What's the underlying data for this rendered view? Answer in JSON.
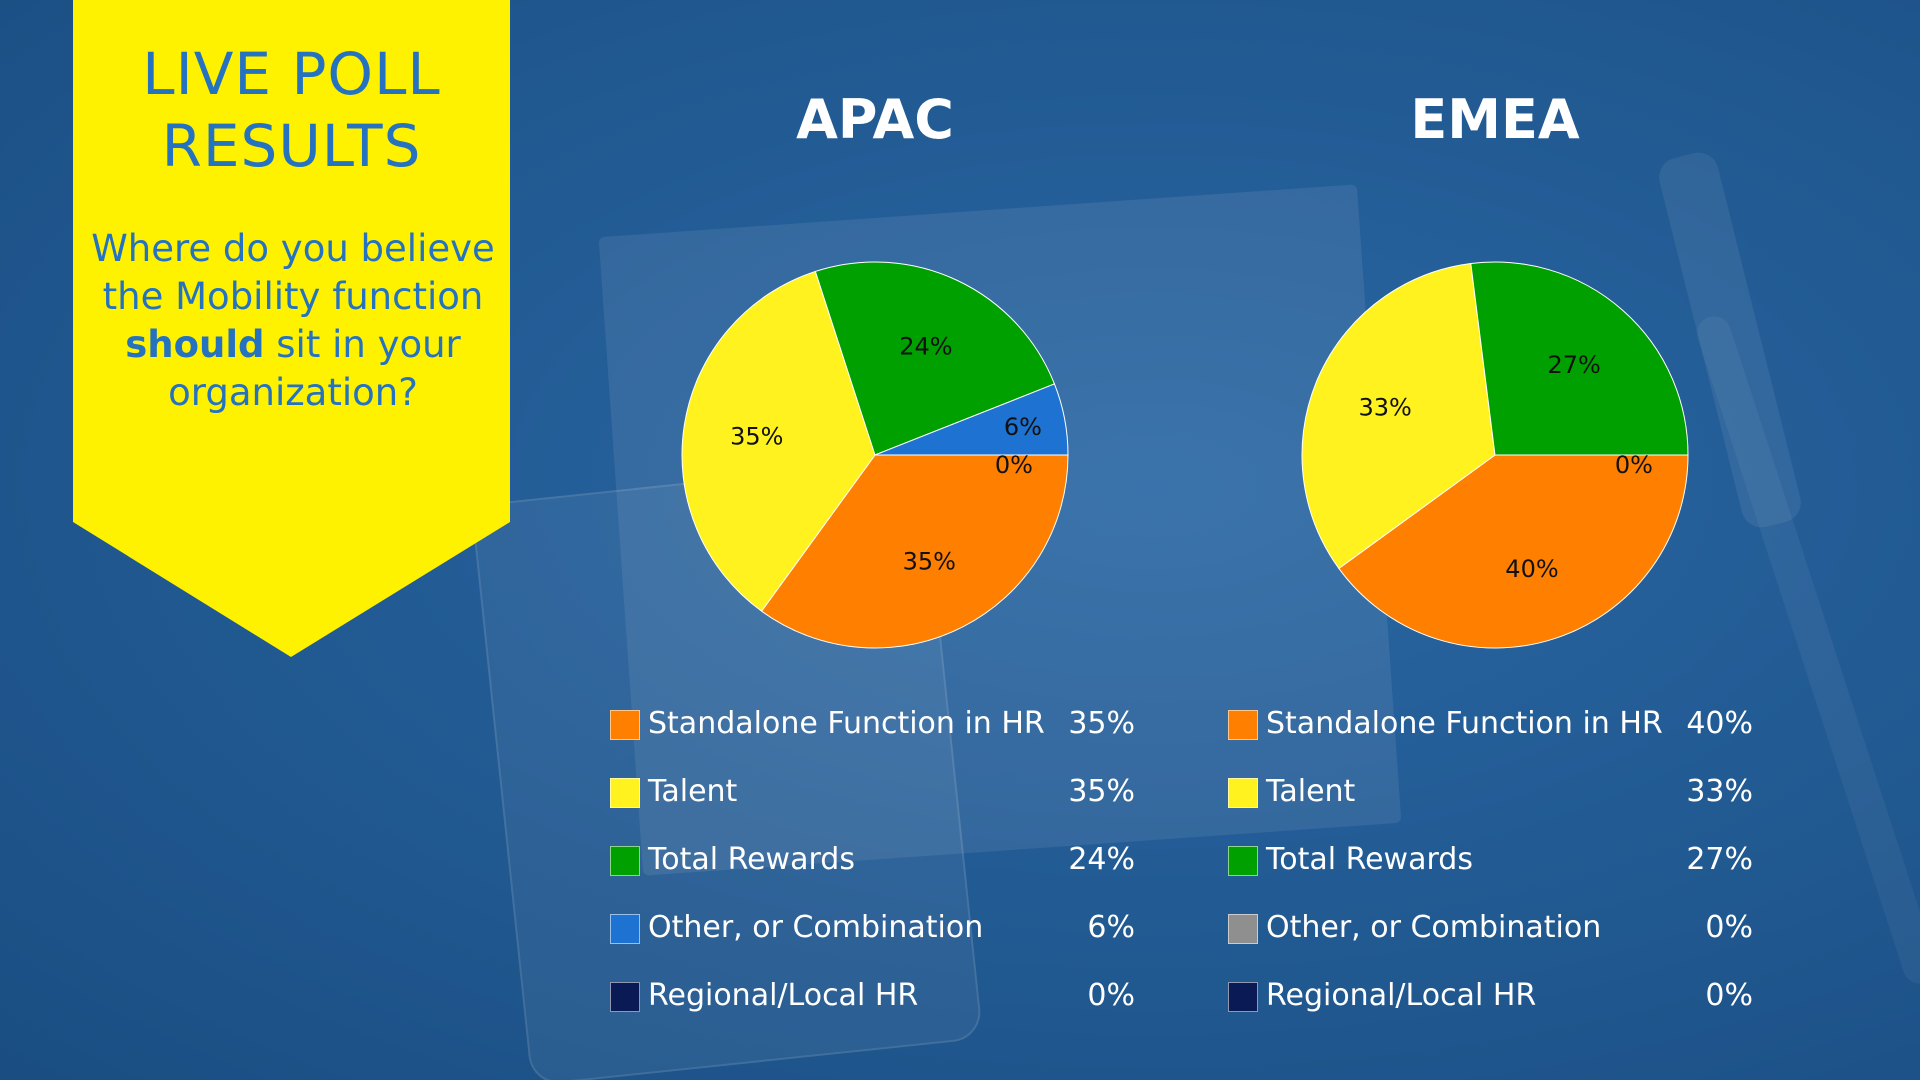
{
  "banner": {
    "title": "LIVE POLL\nRESULTS",
    "question_before": "Where do you believe the Mobility function ",
    "question_bold": "should",
    "question_after": " sit in your organization?",
    "color": "#fff200",
    "text_color": "#2572c0"
  },
  "colors": {
    "background": "#1f5f9f",
    "standalone": "#ff8000",
    "talent": "#fff21f",
    "total_rewards": "#00a000",
    "other_apac": "#1e73d2",
    "other_emea": "#8f8f8f",
    "regional": "#0a1a55"
  },
  "chart_data": [
    {
      "type": "pie",
      "title": "APAC",
      "series": [
        {
          "name": "Standalone Function in HR",
          "value": 35,
          "label": "35%",
          "legend_value": "35%",
          "color": "#ff8000"
        },
        {
          "name": "Talent",
          "value": 35,
          "label": "35%",
          "legend_value": "35%",
          "color": "#fff21f"
        },
        {
          "name": "Total Rewards",
          "value": 24,
          "label": "24%",
          "legend_value": "24%",
          "color": "#00a000"
        },
        {
          "name": "Other, or Combination",
          "value": 6,
          "label": "6%",
          "legend_value": "6%",
          "color": "#1e73d2"
        },
        {
          "name": "Regional/Local HR",
          "value": 0,
          "label": "0%",
          "legend_value": "0%",
          "color": "#0a1a55"
        }
      ],
      "legend_position": "bottom"
    },
    {
      "type": "pie",
      "title": "EMEA",
      "series": [
        {
          "name": "Standalone Function in HR",
          "value": 40,
          "label": "40%",
          "legend_value": "40%",
          "color": "#ff8000"
        },
        {
          "name": "Talent",
          "value": 33,
          "label": "33%",
          "legend_value": "33%",
          "color": "#fff21f"
        },
        {
          "name": "Total Rewards",
          "value": 27,
          "label": "27%",
          "legend_value": "27%",
          "color": "#00a000"
        },
        {
          "name": "Other, or Combination",
          "value": 0,
          "label": "",
          "legend_value": "0%",
          "color": "#8f8f8f"
        },
        {
          "name": "Regional/Local HR",
          "value": 0,
          "label": "0%",
          "legend_value": "0%",
          "color": "#0a1a55"
        }
      ],
      "legend_position": "bottom"
    }
  ]
}
